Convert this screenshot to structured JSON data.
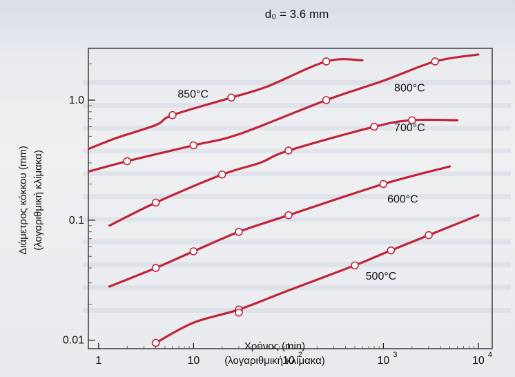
{
  "chart_data": {
    "type": "line",
    "x_scale": "log",
    "y_scale": "log",
    "xlim": [
      1,
      10000
    ],
    "ylim": [
      0.008,
      3
    ],
    "top_text": "d₀ = 3.6 mm",
    "x_ticks": [
      {
        "value": 1,
        "base": "1",
        "exp": ""
      },
      {
        "value": 10,
        "base": "10",
        "exp": ""
      },
      {
        "value": 100,
        "base": "10",
        "exp": "2"
      },
      {
        "value": 1000,
        "base": "10",
        "exp": "3"
      },
      {
        "value": 10000,
        "base": "10",
        "exp": "4"
      }
    ],
    "y_ticks": [
      {
        "value": 0.01,
        "label": "0.01"
      },
      {
        "value": 0.1,
        "label": "0.1"
      },
      {
        "value": 1.0,
        "label": "1.0"
      }
    ],
    "xlabel": "Χρόνος (min)",
    "xlabel_sub": "(λογαριθμική κλίμακα)",
    "ylabel": "Διάμετρος κόκκου (mm)",
    "ylabel_sub": "(λογαριθμική κλίμακα)",
    "line_color": "#c0233a",
    "series": [
      {
        "name": "850°C",
        "points": [
          [
            0.6,
            0.36
          ],
          [
            1.5,
            0.48
          ],
          [
            4,
            0.62
          ],
          [
            6,
            0.75
          ],
          [
            25,
            1.05
          ],
          [
            60,
            1.3
          ],
          [
            250,
            2.1
          ],
          [
            600,
            2.15
          ]
        ],
        "markers": [
          [
            6,
            0.75
          ],
          [
            25,
            1.05
          ],
          [
            250,
            2.1
          ]
        ]
      },
      {
        "name": "800°C",
        "points": [
          [
            0.6,
            0.24
          ],
          [
            2,
            0.31
          ],
          [
            10,
            0.42
          ],
          [
            30,
            0.52
          ],
          [
            250,
            1.0
          ],
          [
            1000,
            1.45
          ],
          [
            3500,
            2.1
          ],
          [
            10000,
            2.4
          ]
        ],
        "markers": [
          [
            2,
            0.31
          ],
          [
            10,
            0.42
          ],
          [
            250,
            1.0
          ],
          [
            3500,
            2.1
          ]
        ]
      },
      {
        "name": "700°C",
        "points": [
          [
            1.3,
            0.09
          ],
          [
            4,
            0.14
          ],
          [
            20,
            0.24
          ],
          [
            50,
            0.3
          ],
          [
            100,
            0.38
          ],
          [
            800,
            0.6
          ],
          [
            2000,
            0.68
          ],
          [
            6000,
            0.68
          ]
        ],
        "markers": [
          [
            4,
            0.14
          ],
          [
            20,
            0.24
          ],
          [
            100,
            0.38
          ],
          [
            800,
            0.6
          ],
          [
            2000,
            0.68
          ]
        ]
      },
      {
        "name": "600°C",
        "points": [
          [
            1.3,
            0.028
          ],
          [
            4,
            0.04
          ],
          [
            10,
            0.055
          ],
          [
            30,
            0.08
          ],
          [
            100,
            0.11
          ],
          [
            1000,
            0.2
          ],
          [
            5000,
            0.28
          ]
        ],
        "markers": [
          [
            4,
            0.04
          ],
          [
            10,
            0.055
          ],
          [
            30,
            0.08
          ],
          [
            100,
            0.11
          ],
          [
            1000,
            0.2
          ]
        ]
      },
      {
        "name": "500°C",
        "points": [
          [
            4,
            0.0095
          ],
          [
            10,
            0.014
          ],
          [
            30,
            0.018
          ],
          [
            100,
            0.026
          ],
          [
            500,
            0.042
          ],
          [
            1200,
            0.056
          ],
          [
            10000,
            0.11
          ]
        ],
        "markers": [
          [
            4,
            0.0095
          ],
          [
            30,
            0.018
          ],
          [
            500,
            0.042
          ],
          [
            1200,
            0.056
          ],
          [
            3000,
            0.075
          ]
        ]
      }
    ],
    "outliers": [
      [
        30,
        0.017
      ]
    ],
    "annotations": [
      {
        "text": "850°C",
        "x": 6.8,
        "y": 1.05
      },
      {
        "text": "800°C",
        "x": 1300,
        "y": 1.18
      },
      {
        "text": "700°C",
        "x": 1300,
        "y": 0.55
      },
      {
        "text": "600°C",
        "x": 1100,
        "y": 0.14
      },
      {
        "text": "500°C",
        "x": 650,
        "y": 0.032
      }
    ]
  }
}
